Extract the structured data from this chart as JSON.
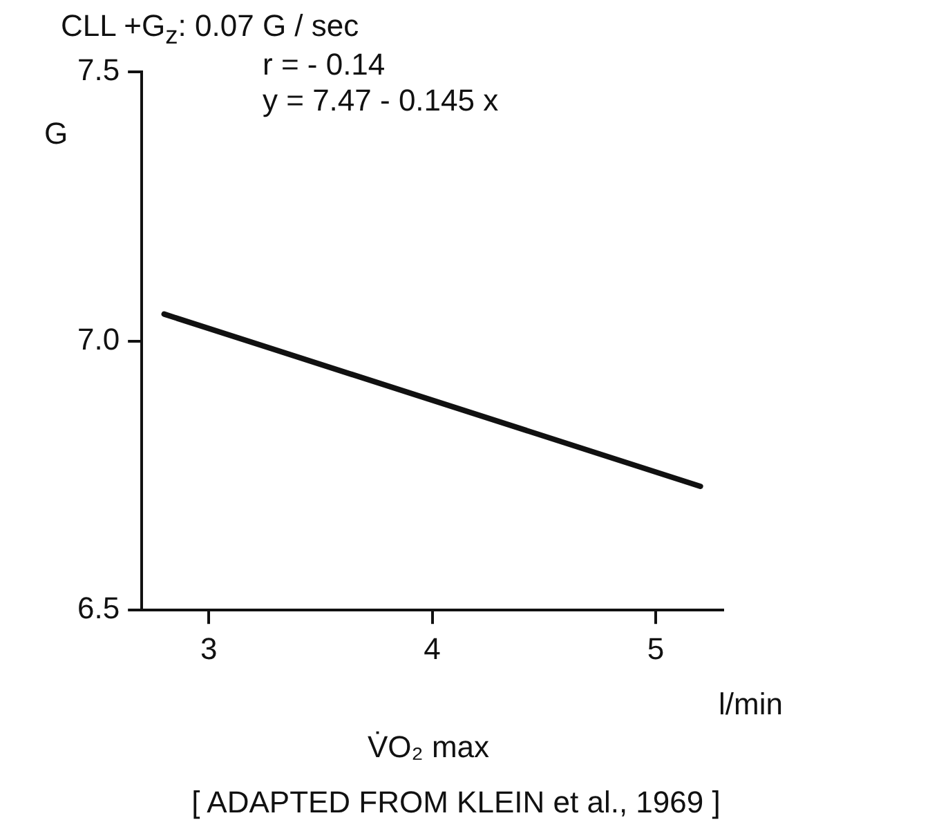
{
  "chart_data": {
    "type": "line",
    "title": "CLL   +G$_{z}$: 0.07 G / sec",
    "xlabel": "V̇O₂ max",
    "ylabel": "G",
    "annotations": [
      "r =  - 0.14",
      "y =  7.47 - 0.145 x",
      "l/min",
      "[ ADAPTED  FROM  KLEIN  et al., 1969 ]"
    ],
    "series": [
      {
        "color": "#111111",
        "x": [
          2.8,
          5.2
        ],
        "values": [
          7.05,
          6.73
        ]
      }
    ],
    "xlim": [
      2.7,
      5.3
    ],
    "xticks": [
      3,
      4,
      5
    ],
    "ylim": [
      6.5,
      7.5
    ],
    "yticks": [
      {
        "value": 6.5,
        "label": "6.5"
      },
      {
        "value": 7,
        "label": "7.0"
      },
      {
        "value": 7.5,
        "label": "7.5"
      }
    ],
    "marker": "none",
    "line_style": "solid"
  }
}
